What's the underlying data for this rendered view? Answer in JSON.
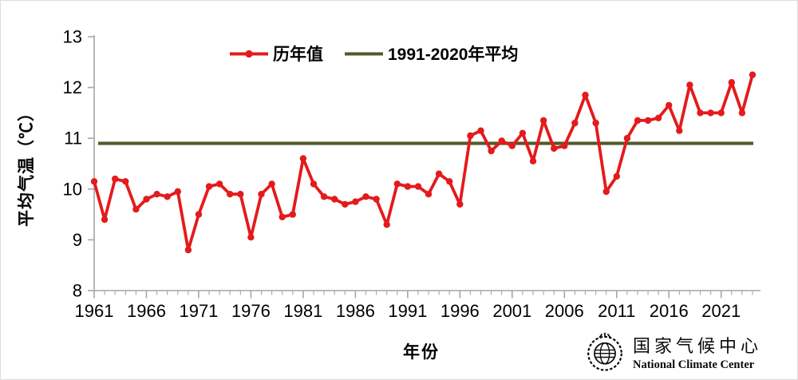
{
  "colors": {
    "series_red": "#e41a1c",
    "mean_olive": "#4f5b2d",
    "axis_gray": "#a6a6a6",
    "text_black": "#000000"
  },
  "legend": {
    "series_label": "历年值",
    "mean_label": "1991-2020年平均"
  },
  "axes": {
    "y_title": "平均气温（℃）",
    "x_title": "年份",
    "y_ticks": [
      8,
      9,
      10,
      11,
      12,
      13
    ],
    "x_tick_labels": [
      1961,
      1966,
      1971,
      1976,
      1981,
      1986,
      1991,
      1996,
      2001,
      2006,
      2011,
      2016,
      2021
    ]
  },
  "footer": {
    "org_cn": "国家气候中心",
    "org_en": "National Climate Center"
  },
  "chart_data": {
    "type": "line",
    "title": "",
    "xlabel": "年份",
    "ylabel": "平均气温（℃）",
    "ylim": [
      8,
      13
    ],
    "grid": false,
    "legend_position": "top-center",
    "x": [
      1961,
      1962,
      1963,
      1964,
      1965,
      1966,
      1967,
      1968,
      1969,
      1970,
      1971,
      1972,
      1973,
      1974,
      1975,
      1976,
      1977,
      1978,
      1979,
      1980,
      1981,
      1982,
      1983,
      1984,
      1985,
      1986,
      1987,
      1988,
      1989,
      1990,
      1991,
      1992,
      1993,
      1994,
      1995,
      1996,
      1997,
      1998,
      1999,
      2000,
      2001,
      2002,
      2003,
      2004,
      2005,
      2006,
      2007,
      2008,
      2009,
      2010,
      2011,
      2012,
      2013,
      2014,
      2015,
      2016,
      2017,
      2018,
      2019,
      2020,
      2021,
      2022,
      2023,
      2024
    ],
    "series": [
      {
        "name": "历年值",
        "color": "#e41a1c",
        "marker": "circle",
        "values": [
          10.15,
          9.4,
          10.2,
          10.15,
          9.6,
          9.8,
          9.9,
          9.85,
          9.95,
          8.8,
          9.5,
          10.05,
          10.1,
          9.9,
          9.9,
          9.05,
          9.9,
          10.1,
          9.45,
          9.5,
          10.6,
          10.1,
          9.85,
          9.8,
          9.7,
          9.75,
          9.85,
          9.8,
          9.3,
          10.1,
          10.05,
          10.05,
          9.9,
          10.3,
          10.15,
          9.7,
          11.05,
          11.15,
          10.75,
          10.95,
          10.85,
          11.1,
          10.55,
          11.35,
          10.8,
          10.85,
          11.3,
          11.85,
          11.3,
          9.95,
          10.25,
          11.0,
          11.35,
          11.35,
          11.4,
          11.65,
          11.15,
          12.05,
          11.5,
          11.5,
          11.5,
          12.1,
          11.5,
          12.25
        ]
      },
      {
        "name": "1991-2020年平均",
        "color": "#4f5b2d",
        "type": "constant",
        "value": 10.9
      }
    ]
  }
}
